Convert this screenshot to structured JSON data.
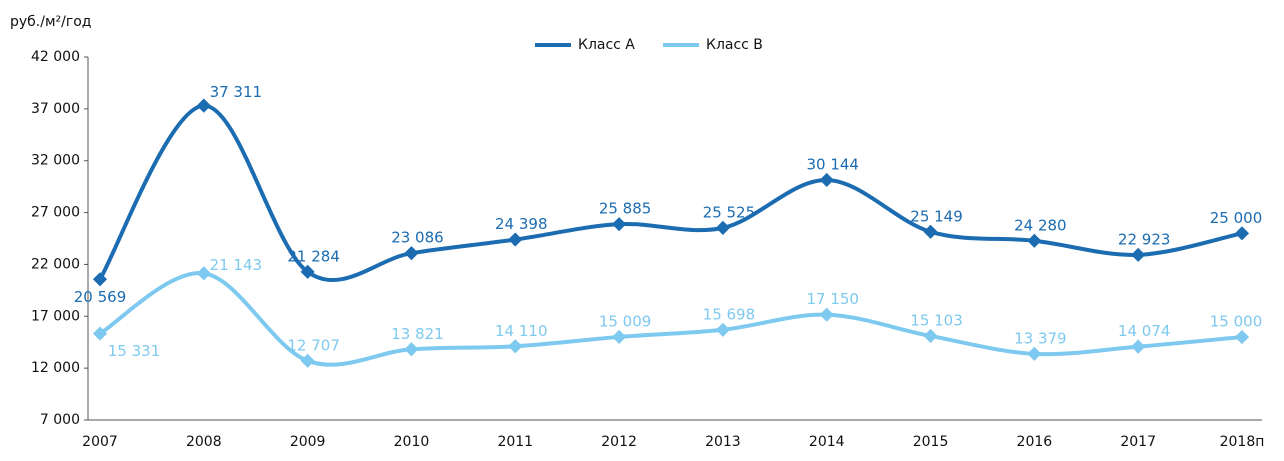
{
  "chart_data": {
    "type": "line",
    "y_label": "руб./м²/год",
    "categories": [
      "2007",
      "2008",
      "2009",
      "2010",
      "2011",
      "2012",
      "2013",
      "2014",
      "2015",
      "2016",
      "2017",
      "2018п"
    ],
    "series": [
      {
        "name": "Класс А",
        "color": "#1c6cb1",
        "values": [
          20569,
          37311,
          21284,
          23086,
          24398,
          25885,
          25525,
          30144,
          25149,
          24280,
          22923,
          25000
        ],
        "value_labels": [
          "20 569",
          "37 311",
          "21 284",
          "23 086",
          "24 398",
          "25 885",
          "25 525",
          "30 144",
          "25 149",
          "24 280",
          "22 923",
          "25 000"
        ]
      },
      {
        "name": "Класс В",
        "color": "#7ec9ef",
        "values": [
          15331,
          21143,
          12707,
          13821,
          14110,
          15009,
          15698,
          17150,
          15103,
          13379,
          14074,
          15000
        ],
        "value_labels": [
          "15 331",
          "21 143",
          "12 707",
          "13 821",
          "14 110",
          "15 009",
          "15 698",
          "17 150",
          "15 103",
          "13 379",
          "14 074",
          "15 000"
        ]
      }
    ],
    "ylim": [
      7000,
      42000
    ],
    "yticks": [
      {
        "value": 7000,
        "label": "7 000"
      },
      {
        "value": 12000,
        "label": "12 000"
      },
      {
        "value": 17000,
        "label": "17 000"
      },
      {
        "value": 22000,
        "label": "22 000"
      },
      {
        "value": 27000,
        "label": "27 000"
      },
      {
        "value": 32000,
        "label": "32 000"
      },
      {
        "value": 37000,
        "label": "37 000"
      },
      {
        "value": 42000,
        "label": "42 000"
      }
    ],
    "legend": "top"
  }
}
